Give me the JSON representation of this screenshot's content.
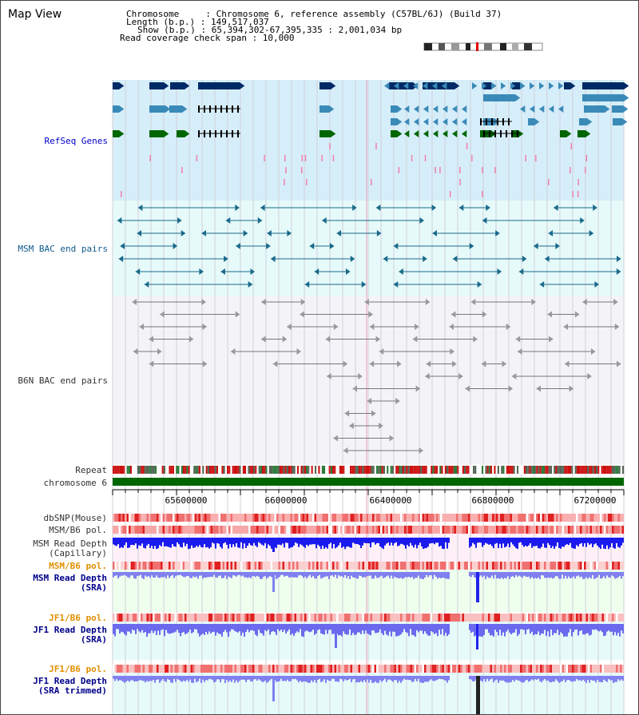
{
  "title": "Map View",
  "info": {
    "chromosome": "Chromosome     : Chromosome 6, reference assembly (C57BL/6J) (Build 37)",
    "length": "Length (b.p.) : 149,517,037",
    "show": "Show (b.p.) : 65,394,302-67,395,335 : 2,001,034 bp",
    "coverage": "Read coverage check span : 10,000"
  },
  "tracks": {
    "refseq": "RefSeq Genes",
    "msm_bac": "MSM BAC end pairs",
    "b6n_bac": "B6N BAC end pairs",
    "repeat": "Repeat",
    "chromosome": "chromosome 6",
    "dbsnp": "dbSNP(Mouse)",
    "msm_pol_1": "MSM/B6 pol.",
    "msm_depth_cap_1": "MSM Read Depth",
    "msm_depth_cap_2": "(Capillary)",
    "msm_pol_2": "MSM/B6 pol.",
    "msm_depth_sra_1": "MSM Read Depth",
    "msm_depth_sra_2": "(SRA)",
    "jf1_pol_1": "JF1/B6 pol.",
    "jf1_depth_sra_1": "JF1 Read Depth",
    "jf1_depth_sra_2": "(SRA)",
    "jf1_pol_2": "JF1/B6 pol.",
    "jf1_depth_trim_1": "JF1 Read Depth",
    "jf1_depth_trim_2": "(SRA trimmed)"
  },
  "axis": {
    "ticks": [
      "65600000",
      "66000000",
      "66400000",
      "66800000",
      "67200000"
    ]
  },
  "colors": {
    "refseq_bg": "#d6eefa",
    "msm_bg": "#e6fafa",
    "b6n_bg": "#f4f4f8",
    "gene_navy": "#002a66",
    "gene_teal": "#3a8ab8",
    "gene_green": "#006600",
    "bac_teal": "#1a6a8a",
    "bac_gray": "#777777",
    "depth_blue": "#1a1aee",
    "depth_light": "#8080f0"
  }
}
